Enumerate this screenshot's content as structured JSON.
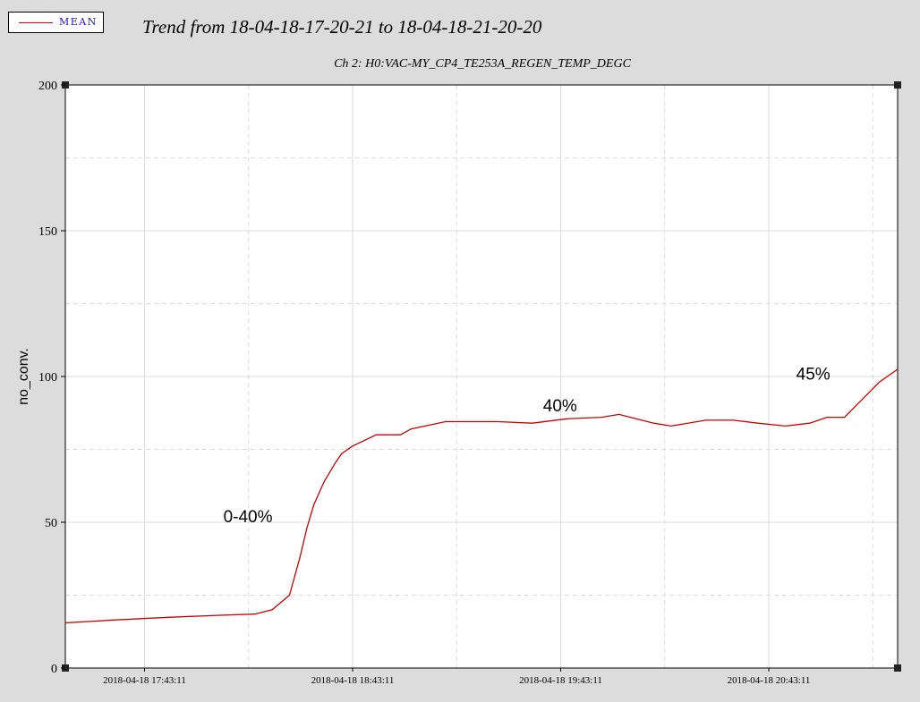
{
  "legend": {
    "label": "MEAN",
    "color": "#cc0000"
  },
  "header": {
    "title": "Trend from 18-04-18-17-20-21 to 18-04-18-21-20-20",
    "subtitle": "Ch 2: H0:VAC-MY_CP4_TE253A_REGEN_TEMP_DEGC"
  },
  "chart_data": {
    "type": "line",
    "title": "Trend from 18-04-18-17-20-21 to 18-04-18-21-20-20",
    "subtitle": "Ch 2: H0:VAC-MY_CP4_TE253A_REGEN_TEMP_DEGC",
    "xlabel": "",
    "ylabel": "no_conv.",
    "xlim": [
      "2018-04-18 17:20:21",
      "2018-04-18 21:20:20"
    ],
    "ylim": [
      0,
      200
    ],
    "yticks": [
      0,
      50,
      100,
      150,
      200
    ],
    "xticks": [
      "2018-04-18 17:43:11",
      "2018-04-18 18:43:11",
      "2018-04-18 19:43:11",
      "2018-04-18 20:43:11"
    ],
    "grid": true,
    "legend_position": "top-left",
    "series": [
      {
        "name": "MEAN",
        "color": "#cc0000",
        "x": [
          "2018-04-18 17:20:21",
          "2018-04-18 17:35:00",
          "2018-04-18 17:50:00",
          "2018-04-18 18:05:00",
          "2018-04-18 18:15:00",
          "2018-04-18 18:20:00",
          "2018-04-18 18:25:00",
          "2018-04-18 18:28:00",
          "2018-04-18 18:30:00",
          "2018-04-18 18:32:00",
          "2018-04-18 18:35:00",
          "2018-04-18 18:38:00",
          "2018-04-18 18:40:00",
          "2018-04-18 18:43:00",
          "2018-04-18 18:50:00",
          "2018-04-18 18:57:00",
          "2018-04-18 19:00:00",
          "2018-04-18 19:10:00",
          "2018-04-18 19:15:00",
          "2018-04-18 19:25:00",
          "2018-04-18 19:35:00",
          "2018-04-18 19:45:00",
          "2018-04-18 19:55:00",
          "2018-04-18 20:00:00",
          "2018-04-18 20:10:00",
          "2018-04-18 20:15:00",
          "2018-04-18 20:25:00",
          "2018-04-18 20:33:00",
          "2018-04-18 20:40:00",
          "2018-04-18 20:48:00",
          "2018-04-18 20:55:00",
          "2018-04-18 21:00:00",
          "2018-04-18 21:05:00",
          "2018-04-18 21:10:00",
          "2018-04-18 21:15:00",
          "2018-04-18 21:20:20"
        ],
        "y": [
          15.5,
          16.5,
          17.4,
          18.1,
          18.5,
          20,
          25,
          38,
          48,
          56,
          64,
          70,
          73.5,
          76,
          80,
          80,
          82,
          84.5,
          84.5,
          84.5,
          84,
          85.5,
          86,
          87,
          84,
          83,
          85,
          85,
          84,
          83,
          84,
          86,
          86,
          92,
          98,
          102.5
        ]
      }
    ],
    "annotations": [
      {
        "text": "0-40%",
        "x": "2018-04-18 18:13:00",
        "y": 50
      },
      {
        "text": "40%",
        "x": "2018-04-18 19:43:00",
        "y": 88
      },
      {
        "text": "45%",
        "x": "2018-04-18 20:56:00",
        "y": 99
      }
    ]
  }
}
